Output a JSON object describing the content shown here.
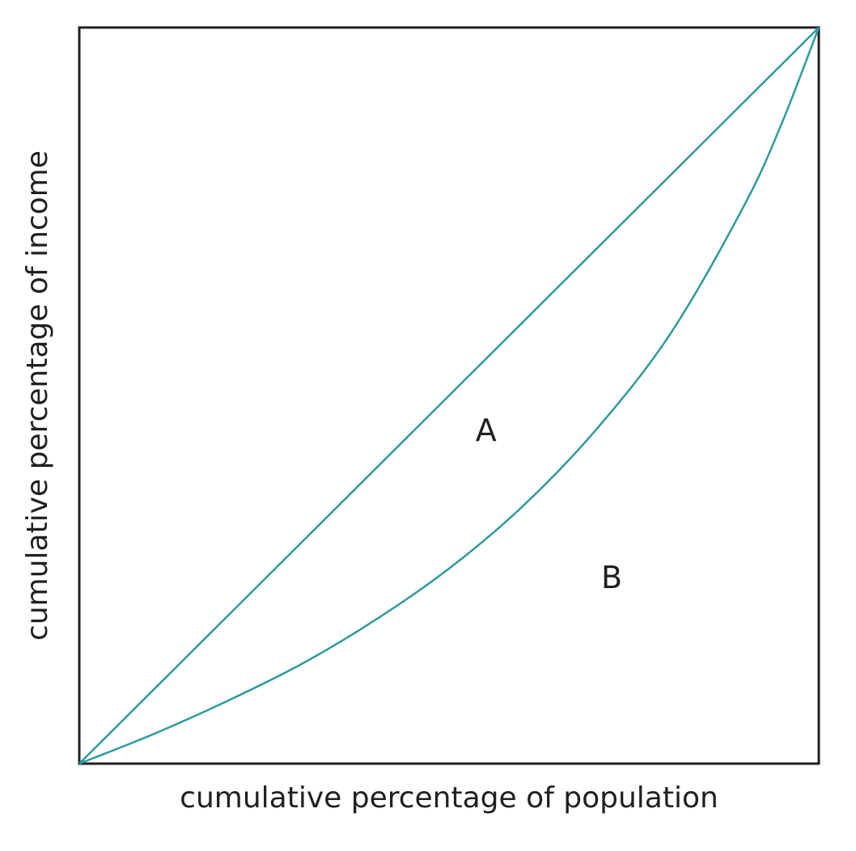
{
  "chart_data": {
    "type": "line",
    "title": "",
    "xlabel": "cumulative percentage of population",
    "ylabel": "cumulative percentage of income",
    "xlim": [
      0,
      100
    ],
    "ylim": [
      0,
      100
    ],
    "grid": false,
    "ticks": false,
    "series": [
      {
        "x": [
          0,
          100
        ],
        "y": [
          0,
          100
        ]
      },
      {
        "x": [
          0,
          10,
          20,
          30,
          40,
          50,
          60,
          70,
          80,
          90,
          95,
          100
        ],
        "y": [
          0,
          4,
          8.5,
          13.5,
          19.5,
          26.5,
          35,
          45.5,
          58.5,
          76,
          87,
          100
        ]
      }
    ],
    "annotations": [
      {
        "text": "A",
        "x": 55,
        "y": 45
      },
      {
        "text": "B",
        "x": 72,
        "y": 25
      }
    ],
    "colors": {
      "curve": "#2e9a9e",
      "frame": "#231f20",
      "text": "#231f20"
    }
  }
}
